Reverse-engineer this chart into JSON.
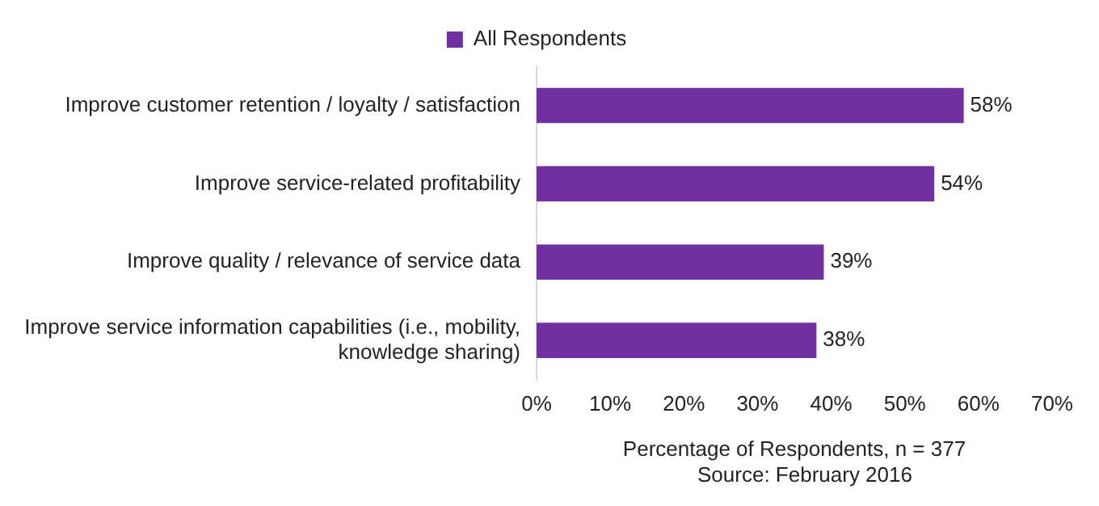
{
  "chart_data": {
    "type": "bar",
    "orientation": "horizontal",
    "xlabel": "Percentage of Respondents, n = 377",
    "annotations": [
      "Source: February 2016"
    ],
    "categories": [
      "Improve customer retention / loyalty / satisfaction",
      "Improve service-related profitability",
      "Improve quality / relevance of service data",
      "Improve service information capabilities (i.e., mobility, knowledge sharing)"
    ],
    "series": [
      {
        "name": "All Respondents",
        "color": "#7030a0",
        "values": [
          58,
          54,
          39,
          38
        ],
        "value_labels": [
          "58%",
          "54%",
          "39%",
          "38%"
        ]
      }
    ],
    "xlim": [
      0,
      70
    ],
    "xticks": [
      {
        "value": 0,
        "label": "0%"
      },
      {
        "value": 10,
        "label": "10%"
      },
      {
        "value": 20,
        "label": "20%"
      },
      {
        "value": 30,
        "label": "30%"
      },
      {
        "value": 40,
        "label": "40%"
      },
      {
        "value": 50,
        "label": "50%"
      },
      {
        "value": 60,
        "label": "60%"
      },
      {
        "value": 70,
        "label": "70%"
      }
    ],
    "grid": false,
    "legend": "top"
  }
}
